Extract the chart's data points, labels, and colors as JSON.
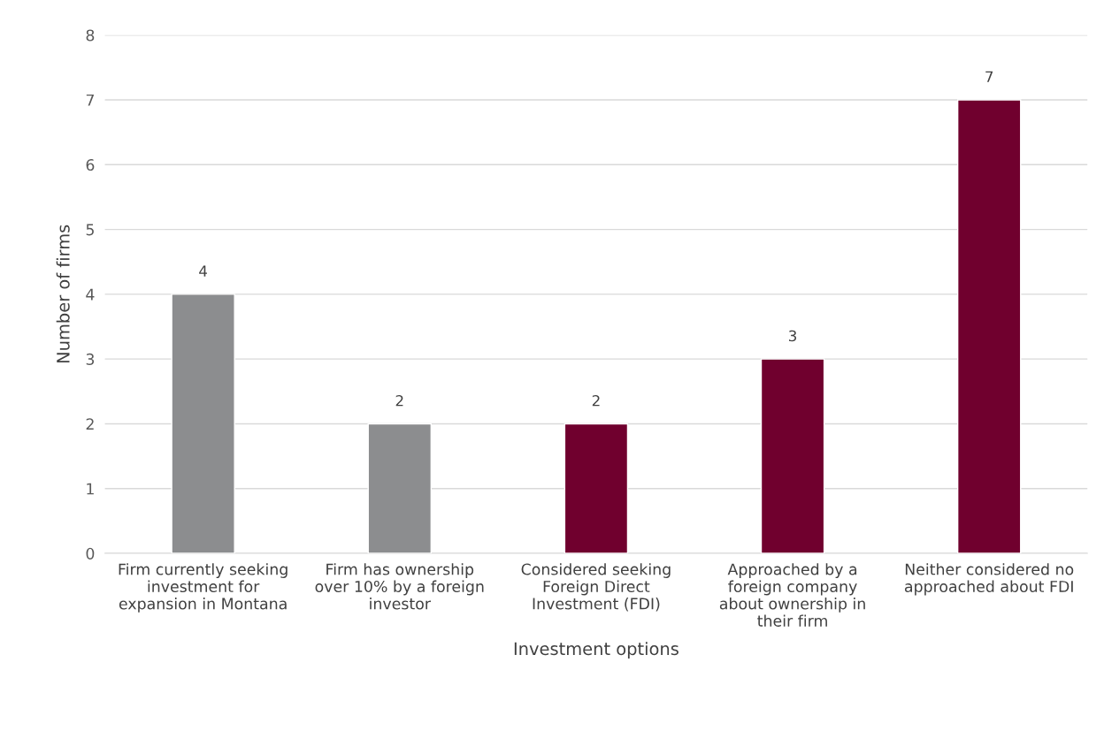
{
  "chart_data": {
    "type": "bar",
    "xlabel": "Investment options",
    "ylabel": "Number of firms",
    "categories": [
      "Firm currently seeking\ninvestment for\nexpansion in Montana",
      "Firm has ownership\nover 10% by a foreign\ninvestor",
      "Considered seeking\nForeign Direct\nInvestment (FDI)",
      "Approached by a\nforeign company\nabout ownership in\ntheir firm",
      "Neither considered no\napproached about FDI"
    ],
    "values": [
      4,
      2,
      2,
      3,
      7
    ],
    "colors": [
      "#8c8d8f",
      "#8c8d8f",
      "#70002e",
      "#70002e",
      "#70002e"
    ],
    "ylim": [
      0,
      8
    ],
    "yticks": [
      0,
      1,
      2,
      3,
      4,
      5,
      6,
      7,
      8
    ],
    "grid": "y",
    "data_labels": true,
    "legend": false
  }
}
